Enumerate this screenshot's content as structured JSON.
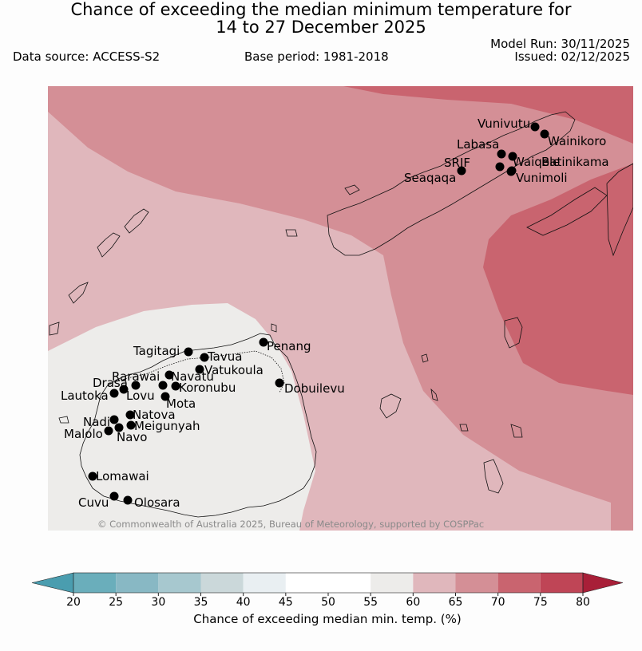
{
  "title_line1": "Chance of exceeding the median minimum temperature for",
  "title_line2": "14 to 27 December 2025",
  "data_source": "Data source: ACCESS-S2",
  "base_period": "Base period: 1981-2018",
  "model_run": "Model Run: 30/11/2025",
  "issued": "Issued: 02/12/2025",
  "copyright": "© Commonwealth of Australia 2025, Bureau of Meteorology, supported by COSPPac",
  "places": [
    {
      "name": "Vunivutu"
    },
    {
      "name": "Wainikoro"
    },
    {
      "name": "Labasa"
    },
    {
      "name": "Waiqele"
    },
    {
      "name": "SRIF"
    },
    {
      "name": "Batinikama"
    },
    {
      "name": "Seaqaqa"
    },
    {
      "name": "Vunimoli"
    },
    {
      "name": "Tagitagi"
    },
    {
      "name": "Penang"
    },
    {
      "name": "Tavua"
    },
    {
      "name": "Vatukoula"
    },
    {
      "name": "Rarawai"
    },
    {
      "name": "Navatu"
    },
    {
      "name": "Drasa"
    },
    {
      "name": "Koronubu"
    },
    {
      "name": "Lautoka"
    },
    {
      "name": "Lovu"
    },
    {
      "name": "Dobuilevu"
    },
    {
      "name": "Mota"
    },
    {
      "name": "Natova"
    },
    {
      "name": "Nadi"
    },
    {
      "name": "Meigunyah"
    },
    {
      "name": "Malolo"
    },
    {
      "name": "Navo"
    },
    {
      "name": "Lomawai"
    },
    {
      "name": "Cuvu"
    },
    {
      "name": "Olosara"
    }
  ],
  "colorbar": {
    "label": "Chance of exceeding median min. temp. (%)",
    "ticks": [
      "20",
      "25",
      "30",
      "35",
      "40",
      "45",
      "50",
      "55",
      "60",
      "65",
      "70",
      "75",
      "80"
    ],
    "colors": [
      "#6aaebb",
      "#88b8c4",
      "#a7c8cf",
      "#cbd8da",
      "#e9eff2",
      "#ffffff",
      "#ffffff",
      "#edecea",
      "#e0b7bc",
      "#d48f96",
      "#c9646f",
      "#bf4556"
    ],
    "below_color": "#4a9daf",
    "above_color": "#a81f38"
  },
  "map_shading": {
    "region_55_60": "#edecea",
    "region_60_65": "#e0b7bc",
    "region_65_70": "#d48f96",
    "region_70_75": "#c9646f"
  }
}
